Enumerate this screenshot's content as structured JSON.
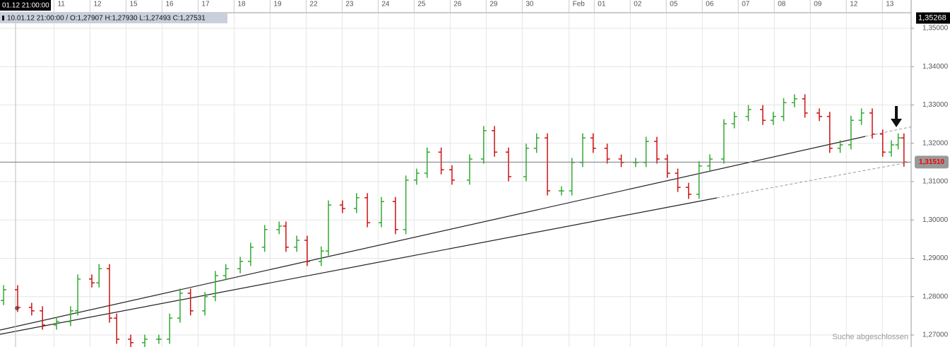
{
  "chart_data": {
    "type": "ohlc",
    "crosshair_time": "01.12 21:00:00",
    "info_text": "10.01.12 21:00:00 / O:1,27907  H:1,27930  L:1,27493  C:1,27531",
    "status": "Suche abgeschlossen",
    "up_color": "#33a833",
    "down_color": "#cc1111",
    "grid": true,
    "xlim": [
      0,
      25.3
    ],
    "ylim": [
      1.26687,
      1.35406
    ],
    "yticks": [
      {
        "value": 1.27,
        "label": "1,27000"
      },
      {
        "value": 1.28,
        "label": "1,28000"
      },
      {
        "value": 1.29,
        "label": "1,29000"
      },
      {
        "value": 1.3,
        "label": "1,30000"
      },
      {
        "value": 1.31,
        "label": "1,31000"
      },
      {
        "value": 1.32,
        "label": "1,32000"
      },
      {
        "value": 1.33,
        "label": "1,33000"
      },
      {
        "value": 1.34,
        "label": "1,34000"
      },
      {
        "value": 1.35,
        "label": "1,35000"
      }
    ],
    "xticks": [
      {
        "value": 1.5,
        "label": "11"
      },
      {
        "value": 2.5,
        "label": "12"
      },
      {
        "value": 3.5,
        "label": "15"
      },
      {
        "value": 4.5,
        "label": "16"
      },
      {
        "value": 5.5,
        "label": "17"
      },
      {
        "value": 6.5,
        "label": "18"
      },
      {
        "value": 7.5,
        "label": "19"
      },
      {
        "value": 8.5,
        "label": "22"
      },
      {
        "value": 9.5,
        "label": "23"
      },
      {
        "value": 10.5,
        "label": "24"
      },
      {
        "value": 11.5,
        "label": "25"
      },
      {
        "value": 12.5,
        "label": "26"
      },
      {
        "value": 13.5,
        "label": "29"
      },
      {
        "value": 14.5,
        "label": "30"
      },
      {
        "value": 15.8,
        "label": "Feb"
      },
      {
        "value": 16.5,
        "label": "01"
      },
      {
        "value": 17.5,
        "label": "02"
      },
      {
        "value": 18.5,
        "label": "05"
      },
      {
        "value": 19.5,
        "label": "06"
      },
      {
        "value": 20.5,
        "label": "07"
      },
      {
        "value": 21.5,
        "label": "08"
      },
      {
        "value": 22.5,
        "label": "09"
      },
      {
        "value": 23.5,
        "label": "12"
      },
      {
        "value": 24.5,
        "label": "13"
      }
    ],
    "crosshair_price": {
      "value": 1.35268,
      "label": "1,35268"
    },
    "last_price": {
      "value": 1.3151,
      "label": "1,31510"
    },
    "x": [
      0.1,
      0.49,
      0.88,
      1.18,
      1.57,
      1.96,
      2.16,
      2.55,
      2.75,
      3.04,
      3.24,
      3.63,
      4.02,
      4.41,
      4.71,
      5.0,
      5.29,
      5.69,
      5.98,
      6.27,
      6.67,
      6.96,
      7.35,
      7.75,
      7.94,
      8.24,
      8.53,
      8.92,
      9.12,
      9.51,
      9.9,
      10.2,
      10.59,
      10.98,
      11.27,
      11.57,
      11.86,
      12.25,
      12.55,
      13.04,
      13.43,
      13.73,
      14.12,
      14.61,
      14.9,
      15.2,
      15.59,
      15.88,
      16.18,
      16.47,
      16.86,
      17.25,
      17.65,
      17.94,
      18.24,
      18.53,
      18.82,
      19.12,
      19.41,
      19.71,
      20.1,
      20.39,
      20.78,
      21.18,
      21.47,
      21.76,
      22.06,
      22.35,
      22.75,
      23.04,
      23.33,
      23.63,
      23.92,
      24.22,
      24.51,
      24.75,
      24.94,
      25.1
    ],
    "open": [
      1.279,
      1.2818,
      1.2772,
      1.2763,
      1.2726,
      1.2735,
      1.2763,
      1.2846,
      1.2836,
      1.2873,
      1.2744,
      1.2689,
      1.268,
      1.2689,
      1.2689,
      1.2744,
      1.2809,
      1.2763,
      1.28,
      1.2855,
      1.2873,
      1.2892,
      1.2929,
      1.2975,
      1.2984,
      1.2929,
      1.2947,
      1.2892,
      1.2919,
      1.3039,
      1.303,
      1.3058,
      1.2993,
      1.3048,
      1.2975,
      1.3104,
      1.3122,
      1.3177,
      1.3131,
      1.3104,
      1.3159,
      1.3233,
      1.3177,
      1.3113,
      1.3187,
      1.3214,
      1.3076,
      1.3076,
      1.315,
      1.3214,
      1.3187,
      1.3159,
      1.315,
      1.315,
      1.3205,
      1.3159,
      1.3122,
      1.3085,
      1.3067,
      1.3141,
      1.3159,
      1.3251,
      1.327,
      1.3288,
      1.326,
      1.327,
      1.3306,
      1.3316,
      1.3279,
      1.327,
      1.3187,
      1.3196,
      1.326,
      1.3279,
      1.3224,
      1.3177,
      1.3196,
      1.3214
    ],
    "high": [
      1.283,
      1.283,
      1.2784,
      1.2775,
      1.2747,
      1.2775,
      1.2858,
      1.2858,
      1.2885,
      1.2885,
      1.2756,
      1.2701,
      1.2701,
      1.2701,
      1.2756,
      1.2821,
      1.2821,
      1.2812,
      1.2867,
      1.2885,
      1.2904,
      1.2941,
      1.2987,
      1.2996,
      1.2996,
      1.2959,
      1.2959,
      1.2931,
      1.3051,
      1.3051,
      1.307,
      1.307,
      1.306,
      1.306,
      1.3116,
      1.3134,
      1.3189,
      1.3189,
      1.3143,
      1.3171,
      1.3245,
      1.3245,
      1.3189,
      1.3199,
      1.3226,
      1.3226,
      1.3088,
      1.3162,
      1.3226,
      1.3226,
      1.3199,
      1.3171,
      1.3162,
      1.3217,
      1.3217,
      1.3171,
      1.3134,
      1.3097,
      1.3153,
      1.3171,
      1.3263,
      1.3282,
      1.33,
      1.33,
      1.3282,
      1.3318,
      1.3328,
      1.3328,
      1.3291,
      1.3282,
      1.3208,
      1.3272,
      1.3291,
      1.3291,
      1.3236,
      1.3208,
      1.3226,
      1.3226
    ],
    "low": [
      1.2778,
      1.276,
      1.2751,
      1.2714,
      1.2714,
      1.2723,
      1.2751,
      1.2824,
      1.2824,
      1.2732,
      1.2677,
      1.2668,
      1.2668,
      1.2677,
      1.2677,
      1.2732,
      1.2751,
      1.2751,
      1.2788,
      1.2843,
      1.2861,
      1.288,
      1.2917,
      1.2963,
      1.2917,
      1.2917,
      1.288,
      1.288,
      1.2907,
      1.3018,
      1.3018,
      1.2981,
      1.2981,
      1.2963,
      1.2963,
      1.3092,
      1.311,
      1.3119,
      1.3092,
      1.3092,
      1.3147,
      1.3165,
      1.3101,
      1.3101,
      1.3175,
      1.3064,
      1.3064,
      1.3064,
      1.3138,
      1.3175,
      1.3147,
      1.3138,
      1.3138,
      1.3138,
      1.3147,
      1.311,
      1.3073,
      1.3055,
      1.3055,
      1.3129,
      1.3147,
      1.3239,
      1.3258,
      1.3248,
      1.3248,
      1.3258,
      1.3294,
      1.3267,
      1.3258,
      1.3175,
      1.3175,
      1.3184,
      1.3248,
      1.3212,
      1.3165,
      1.3165,
      1.3184,
      1.3139
    ],
    "close": [
      1.2818,
      1.2772,
      1.2763,
      1.2726,
      1.2735,
      1.2763,
      1.2846,
      1.2836,
      1.2873,
      1.2744,
      1.2689,
      1.268,
      1.2689,
      1.2689,
      1.2744,
      1.2809,
      1.2763,
      1.28,
      1.2855,
      1.2873,
      1.2892,
      1.2929,
      1.2975,
      1.2984,
      1.2929,
      1.2947,
      1.2892,
      1.2919,
      1.3039,
      1.303,
      1.3058,
      1.2993,
      1.3048,
      1.2975,
      1.3104,
      1.3122,
      1.3177,
      1.3131,
      1.3104,
      1.3159,
      1.3233,
      1.3177,
      1.3113,
      1.3187,
      1.3214,
      1.3076,
      1.3076,
      1.315,
      1.3214,
      1.3187,
      1.3159,
      1.315,
      1.315,
      1.3205,
      1.3159,
      1.3122,
      1.3085,
      1.3067,
      1.3141,
      1.3159,
      1.3251,
      1.327,
      1.3288,
      1.326,
      1.327,
      1.3306,
      1.3316,
      1.3279,
      1.327,
      1.3187,
      1.3196,
      1.326,
      1.3279,
      1.3224,
      1.3177,
      1.3196,
      1.3214,
      1.3151
    ]
  }
}
